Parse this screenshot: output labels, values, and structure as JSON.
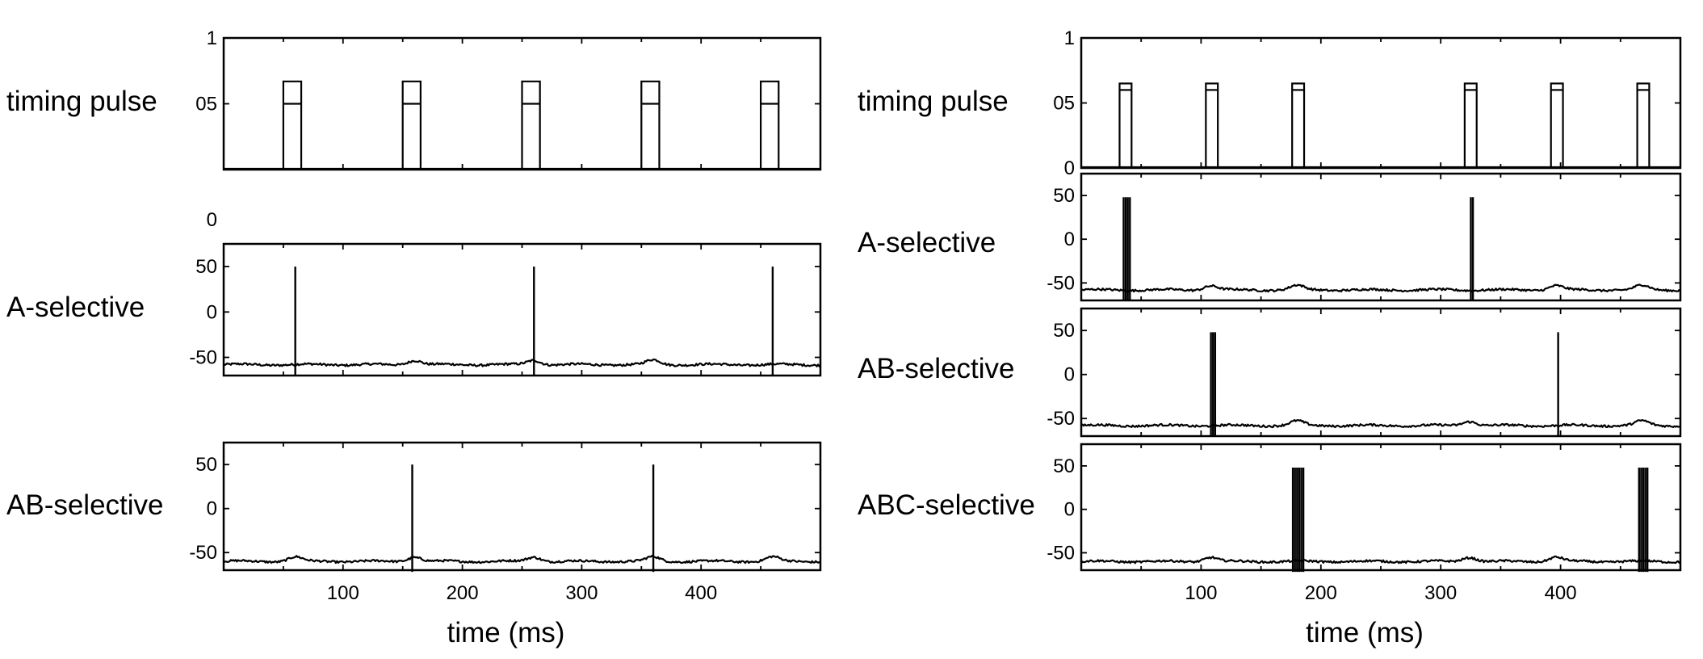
{
  "chart_data": [
    {
      "type": "line",
      "xlabel": "time (ms)",
      "xlim": [
        0,
        500
      ],
      "x_ticks": [
        100,
        200,
        300,
        400
      ],
      "panels": [
        {
          "id": "timing",
          "label": "timing pulse",
          "kind": "pulse",
          "ylim": [
            0,
            1
          ],
          "y_ticks": [
            {
              "v": 1,
              "t": "1"
            },
            {
              "v": 0.5,
              "t": "05"
            }
          ],
          "extra_labels": [
            {
              "t": "0"
            }
          ],
          "pulses": [
            {
              "x1": 50,
              "x2": 65,
              "mid": 0.5,
              "top": 0.67
            },
            {
              "x1": 150,
              "x2": 165,
              "mid": 0.5,
              "top": 0.67
            },
            {
              "x1": 250,
              "x2": 265,
              "mid": 0.5,
              "top": 0.67
            },
            {
              "x1": 350,
              "x2": 365,
              "mid": 0.5,
              "top": 0.67
            },
            {
              "x1": 450,
              "x2": 465,
              "mid": 0.5,
              "top": 0.67
            }
          ]
        },
        {
          "id": "a_sel",
          "label": "A-selective",
          "kind": "trace",
          "ylim": [
            -70,
            75
          ],
          "y_ticks": [
            {
              "v": 50,
              "t": "50"
            },
            {
              "v": 0,
              "t": "0"
            },
            {
              "v": -50,
              "t": "-50"
            }
          ],
          "baseline": -58,
          "bumps": [
            160,
            260,
            360
          ],
          "spikes": [
            {
              "x": 60,
              "n": 1,
              "top": 50
            },
            {
              "x": 260,
              "n": 1,
              "top": 50
            },
            {
              "x": 460,
              "n": 1,
              "top": 50
            }
          ]
        },
        {
          "id": "ab_sel",
          "label": "AB-selective",
          "kind": "trace",
          "ylim": [
            -70,
            75
          ],
          "y_ticks": [
            {
              "v": 50,
              "t": "50"
            },
            {
              "v": 0,
              "t": "0"
            },
            {
              "v": -50,
              "t": "-50"
            }
          ],
          "baseline": -60,
          "bumps": [
            60,
            160,
            260,
            360,
            460
          ],
          "spikes": [
            {
              "x": 158,
              "n": 1,
              "top": 50
            },
            {
              "x": 360,
              "n": 1,
              "top": 50
            }
          ]
        }
      ]
    },
    {
      "type": "line",
      "xlabel": "time (ms)",
      "xlim": [
        0,
        500
      ],
      "x_ticks": [
        100,
        200,
        300,
        400
      ],
      "panels": [
        {
          "id": "timing",
          "label": "timing pulse",
          "kind": "pulse",
          "ylim": [
            0,
            1
          ],
          "y_ticks": [
            {
              "v": 1,
              "t": "1"
            },
            {
              "v": 0.5,
              "t": "05"
            },
            {
              "v": 0,
              "t": "0"
            }
          ],
          "pulses": [
            {
              "x1": 32,
              "x2": 42,
              "mid": 0.6,
              "top": 0.65
            },
            {
              "x1": 104,
              "x2": 114,
              "mid": 0.6,
              "top": 0.65
            },
            {
              "x1": 176,
              "x2": 186,
              "mid": 0.6,
              "top": 0.65
            },
            {
              "x1": 320,
              "x2": 330,
              "mid": 0.6,
              "top": 0.65
            },
            {
              "x1": 392,
              "x2": 402,
              "mid": 0.6,
              "top": 0.65
            },
            {
              "x1": 464,
              "x2": 474,
              "mid": 0.6,
              "top": 0.65
            }
          ]
        },
        {
          "id": "a_sel",
          "label": "A-selective",
          "kind": "trace",
          "ylim": [
            -70,
            75
          ],
          "y_ticks": [
            {
              "v": 50,
              "t": "50"
            },
            {
              "v": 0,
              "t": "0"
            },
            {
              "v": -50,
              "t": "-50"
            }
          ],
          "baseline": -58,
          "bumps": [
            108,
            180,
            396,
            468
          ],
          "spikes": [
            {
              "x": 38,
              "n": 4,
              "top": 48
            },
            {
              "x": 326,
              "n": 2,
              "top": 48
            }
          ]
        },
        {
          "id": "ab_sel",
          "label": "AB-selective",
          "kind": "trace",
          "ylim": [
            -70,
            75
          ],
          "y_ticks": [
            {
              "v": 50,
              "t": "50"
            },
            {
              "v": 0,
              "t": "0"
            },
            {
              "v": -50,
              "t": "-50"
            }
          ],
          "baseline": -58,
          "bumps": [
            180,
            324,
            468
          ],
          "spikes": [
            {
              "x": 110,
              "n": 3,
              "top": 48
            },
            {
              "x": 398,
              "n": 1,
              "top": 48
            }
          ]
        },
        {
          "id": "abc_sel",
          "label": "ABC-selective",
          "kind": "trace",
          "ylim": [
            -70,
            75
          ],
          "y_ticks": [
            {
              "v": 50,
              "t": "50"
            },
            {
              "v": 0,
              "t": "0"
            },
            {
              "v": -50,
              "t": "-50"
            }
          ],
          "baseline": -60,
          "bumps": [
            108,
            324,
            396
          ],
          "spikes": [
            {
              "x": 181,
              "n": 6,
              "top": 48
            },
            {
              "x": 469,
              "n": 5,
              "top": 48
            }
          ]
        }
      ]
    }
  ]
}
